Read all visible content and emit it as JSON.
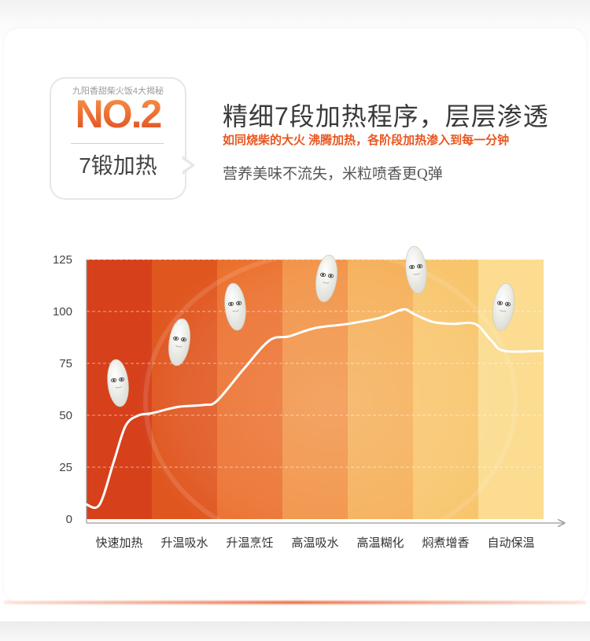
{
  "badge": {
    "caption": "九阳香甜柴火饭4大揭秘",
    "number": "NO.2",
    "subtitle": "7锻加热"
  },
  "headline": "精细7段加热程序，层层渗透",
  "subline": "如同烧柴的大火  沸腾加热，各阶段加热渗入到每一分钟",
  "description": "营养美味不流失，米粒喷香更Q弹",
  "colors": {
    "accent": "#ee6a28",
    "stages": [
      "#d6401b",
      "#e0561f",
      "#eb6f2c",
      "#f19042",
      "#f5ae56",
      "#f8c56c",
      "#fbdc90"
    ]
  },
  "chart_data": {
    "type": "line",
    "x": [
      "快速加热",
      "升温吸水",
      "升温烹饪",
      "高温吸水",
      "高温糊化",
      "焖煮增香",
      "自动保温"
    ],
    "y_ticks": [
      0,
      25,
      50,
      75,
      100,
      125
    ],
    "ylim": [
      0,
      125
    ],
    "curve": [
      [
        0.0,
        7
      ],
      [
        0.2,
        7
      ],
      [
        0.42,
        28
      ],
      [
        0.6,
        45
      ],
      [
        0.8,
        50
      ],
      [
        1.0,
        51
      ],
      [
        1.4,
        54
      ],
      [
        1.8,
        55
      ],
      [
        2.0,
        57
      ],
      [
        2.4,
        72
      ],
      [
        2.8,
        86
      ],
      [
        3.1,
        88
      ],
      [
        3.5,
        92
      ],
      [
        4.0,
        94
      ],
      [
        4.5,
        97
      ],
      [
        4.85,
        101
      ],
      [
        5.0,
        99
      ],
      [
        5.3,
        95
      ],
      [
        5.6,
        94
      ],
      [
        5.95,
        94
      ],
      [
        6.2,
        86
      ],
      [
        6.4,
        81
      ],
      [
        7.0,
        81
      ],
      [
        7.8,
        81
      ]
    ],
    "xlabel": "",
    "ylabel": "",
    "grid": true,
    "legend": "none"
  }
}
